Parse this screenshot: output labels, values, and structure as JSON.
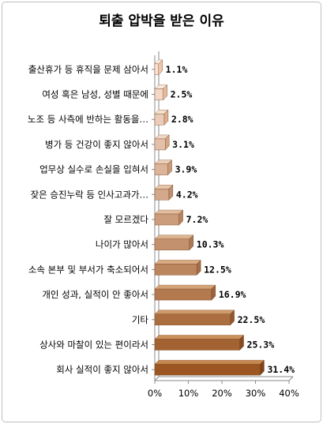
{
  "chart_data": {
    "type": "bar",
    "orientation": "horizontal",
    "style": "3d",
    "title": "퇴출 압박을 받은 이유",
    "xlabel": "",
    "ylabel": "",
    "xlim": [
      0,
      40
    ],
    "x_ticks": [
      "0%",
      "10%",
      "20%",
      "30%",
      "40%"
    ],
    "grid": false,
    "categories": [
      "출산휴가 등 휴직을 문제 삼아서",
      "여성 혹은 남성, 성별 때문에",
      "노조 등 사측에 반하는 활동을…",
      "병가 등 건강이 좋지 않아서",
      "업무상 실수로 손실을 입혀서",
      "잦은 승진누락 등 인사고과가…",
      "잘 모르겠다",
      "나이가 많아서",
      "소속 본부 및 부서가 축소되어서",
      "개인 성과, 실적이 안 좋아서",
      "기타",
      "상사와 마찰이 있는 편이라서",
      "회사 실적이 좋지 않아서"
    ],
    "values": [
      1.1,
      2.5,
      2.8,
      3.1,
      3.9,
      4.2,
      7.2,
      10.3,
      12.5,
      16.9,
      22.5,
      25.3,
      31.4
    ],
    "value_labels": [
      "1.1%",
      "2.5%",
      "2.8%",
      "3.1%",
      "3.9%",
      "4.2%",
      "7.2%",
      "10.3%",
      "12.5%",
      "16.9%",
      "22.5%",
      "25.3%",
      "31.4%"
    ],
    "colors": {
      "front_start": "#fbe3d6",
      "front_end": "#9b5622",
      "top_start": "#fdf1ea",
      "top_end": "#c58850",
      "side_start": "#f1c6a9",
      "side_end": "#7c4219",
      "axis": "#888888"
    }
  }
}
